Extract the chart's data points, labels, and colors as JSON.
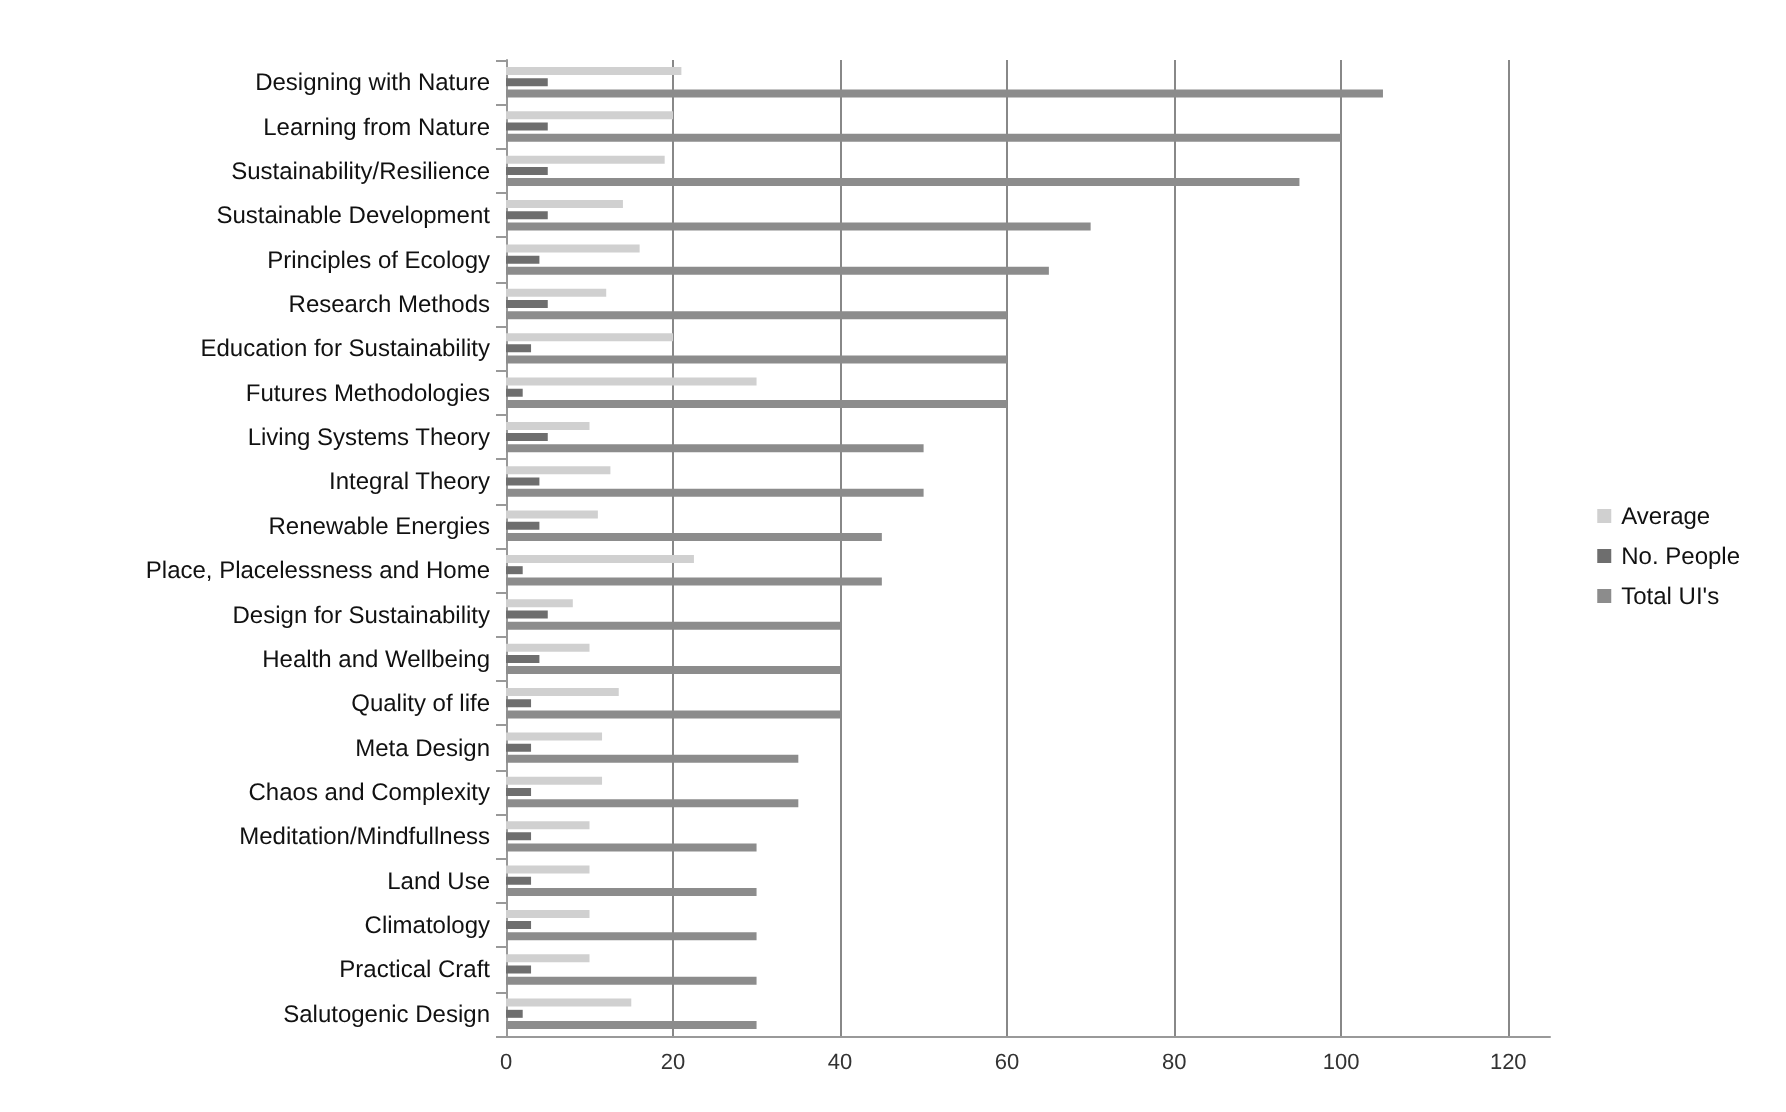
{
  "chart_data": {
    "type": "bar",
    "orientation": "horizontal",
    "categories": [
      "Designing with Nature",
      "Learning from Nature",
      "Sustainability/Resilience",
      "Sustainable Development",
      "Principles of Ecology",
      "Research Methods",
      "Education for Sustainability",
      "Futures Methodologies",
      "Living Systems Theory",
      "Integral Theory",
      "Renewable Energies",
      "Place, Placelessness and Home",
      "Design for Sustainability",
      "Health and Wellbeing",
      "Quality of life",
      "Meta Design",
      "Chaos and Complexity",
      "Meditation/Mindfullness",
      "Land Use",
      "Climatology",
      "Practical Craft",
      "Salutogenic Design"
    ],
    "series": [
      {
        "name": "Average",
        "color": "#d0d0d0",
        "values": [
          21,
          20,
          19,
          14,
          16,
          12,
          20,
          30,
          10,
          12.5,
          11,
          22.5,
          8,
          10,
          13.5,
          11.5,
          11.5,
          10,
          10,
          10,
          10,
          15
        ]
      },
      {
        "name": "No. People",
        "color": "#6e6e6e",
        "values": [
          5,
          5,
          5,
          5,
          4,
          5,
          3,
          2,
          5,
          4,
          4,
          2,
          5,
          4,
          3,
          3,
          3,
          3,
          3,
          3,
          3,
          2
        ]
      },
      {
        "name": "Total UI's",
        "color": "#8c8c8c",
        "values": [
          105,
          100,
          95,
          70,
          65,
          60,
          60,
          60,
          50,
          50,
          45,
          45,
          40,
          40,
          40,
          35,
          35,
          30,
          30,
          30,
          30,
          30
        ]
      }
    ],
    "xlim": [
      0,
      125
    ],
    "xticks": [
      0,
      20,
      40,
      60,
      80,
      100,
      120
    ],
    "grid": "x",
    "legend": "right"
  }
}
